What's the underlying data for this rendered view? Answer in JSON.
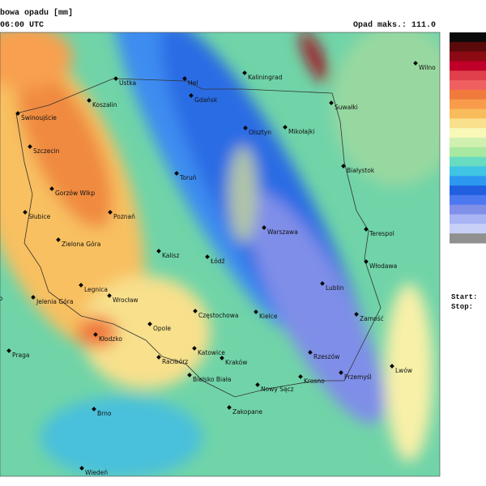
{
  "header": {
    "title": "bowa opadu [mm]",
    "time": "06:00 UTC",
    "max_label": "Opad maks.: 111.0"
  },
  "legend": {
    "colors": [
      "#0a0a0a",
      "#5a0a0a",
      "#8c0a14",
      "#c00028",
      "#e0404c",
      "#f06060",
      "#f07a3c",
      "#f89c4c",
      "#f8bc5c",
      "#f8e08c",
      "#f8f8b8",
      "#d0f0b0",
      "#a8e8a0",
      "#68dcc0",
      "#40c4e4",
      "#2c98f0",
      "#2060e0",
      "#4c78f0",
      "#8090e8",
      "#a8b4f4",
      "#c8d0f8",
      "#909090"
    ]
  },
  "side_labels": [
    "Start:",
    "Stop:"
  ],
  "cities": [
    "Ustka",
    "Hel",
    "Kaliningrad",
    "Koszalin",
    "Gdańsk",
    "Suwałki",
    "Wilno",
    "Świnoujście",
    "Olsztyn",
    "Mikołajki",
    "Szczecin",
    "Toruń",
    "Białystok",
    "Gorzów Wlkp",
    "Słubice",
    "Poznań",
    "Warszawa",
    "Terespol",
    "Zielona Góra",
    "Kalisz",
    "Łódź",
    "Włodawa",
    "Lublin",
    "Legnica",
    "Wrocław",
    "Jelenia Góra",
    "no",
    "Opole",
    "Częstochowa",
    "Kielce",
    "Zamość",
    "Kłodzko",
    "Praga",
    "Racibórz",
    "Katowice",
    "Kraków",
    "Rzeszów",
    "Przemyśl",
    "Lwów",
    "Bielsko Biała",
    "Nowy Sącz",
    "Krosno",
    "Zakopane",
    "Brno",
    "Wiedeń"
  ]
}
